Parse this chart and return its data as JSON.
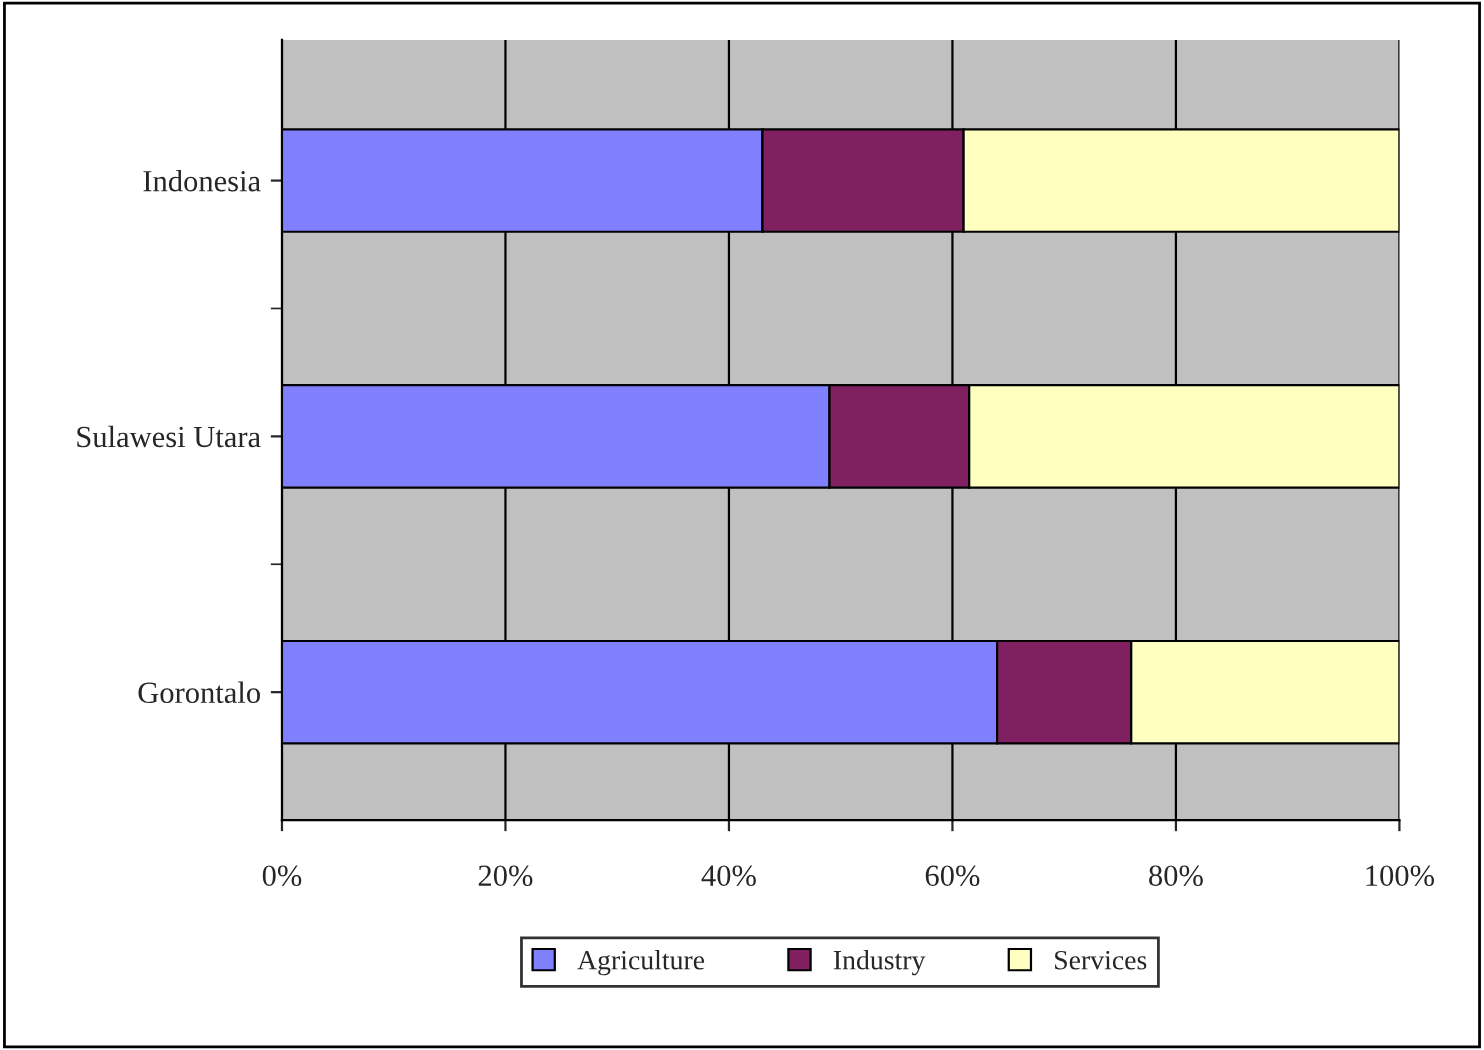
{
  "chart_data": {
    "type": "bar",
    "orientation": "horizontal",
    "stacked": true,
    "categories": [
      "Indonesia",
      "Sulawesi Utara",
      "Gorontalo"
    ],
    "series": [
      {
        "name": "Agriculture",
        "color": "#8080ff",
        "values": [
          43,
          49,
          64
        ]
      },
      {
        "name": "Industry",
        "color": "#802060",
        "values": [
          18,
          12.5,
          12
        ]
      },
      {
        "name": "Services",
        "color": "#ffffc0",
        "values": [
          39,
          38.5,
          24
        ]
      }
    ],
    "xlim": [
      0,
      100
    ],
    "xticks": [
      {
        "value": 0,
        "label": "0%"
      },
      {
        "value": 20,
        "label": "20%"
      },
      {
        "value": 40,
        "label": "40%"
      },
      {
        "value": 60,
        "label": "60%"
      },
      {
        "value": 80,
        "label": "80%"
      },
      {
        "value": 100,
        "label": "100%"
      }
    ],
    "grid": "x",
    "legend": "bottom"
  }
}
